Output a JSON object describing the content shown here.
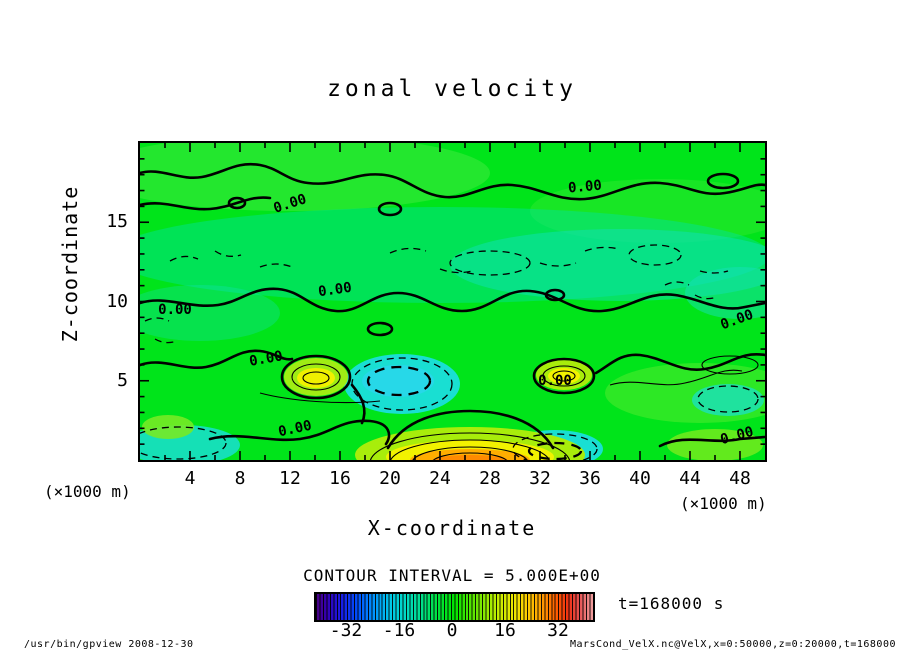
{
  "chart_data": {
    "type": "heatmap",
    "subtype": "filled-contour",
    "title": "zonal velocity",
    "xlabel": "X-coordinate",
    "ylabel": "Z-coordinate",
    "x_unit": "(×1000 m)",
    "y_unit": "(×1000 m)",
    "xlim": [
      0,
      50
    ],
    "ylim": [
      0,
      20
    ],
    "x_ticks": [
      4,
      8,
      12,
      16,
      20,
      24,
      28,
      32,
      36,
      40,
      44,
      48
    ],
    "y_ticks": [
      5,
      10,
      15
    ],
    "grid": false,
    "contour_interval": 5.0,
    "contour_interval_label": "CONTOUR INTERVAL = 5.000E+00",
    "zero_contour_label": "0.00",
    "time_label": "t=168000 s",
    "colorbar": {
      "position": "bottom",
      "ticks": [
        "-32",
        "-16",
        "0",
        "16",
        "32"
      ],
      "range": [
        -40,
        40
      ],
      "palette": [
        "#4b0082",
        "#2020e6",
        "#0064ff",
        "#00b4f0",
        "#00dcc8",
        "#00e464",
        "#00e400",
        "#78ea00",
        "#d2ee00",
        "#f5dc00",
        "#ffaa00",
        "#ff6400",
        "#ef3c1e",
        "#f0a0a0"
      ]
    },
    "field_summary": {
      "background_value_range": [
        -5,
        5
      ],
      "features": [
        {
          "x": 26,
          "z": 0.5,
          "approx_value": 20,
          "note": "strong positive maximum at bottom boundary (orange core, nested solid contours)"
        },
        {
          "x": 14.5,
          "z": 5,
          "approx_value": 8,
          "note": "local positive cell (yellow patch ringed by solid contours)"
        },
        {
          "x": 34,
          "z": 5.5,
          "approx_value": 8,
          "note": "local positive cell (yellow patch ringed by solid contours)"
        },
        {
          "x": 21,
          "z": 4.5,
          "approx_value": -9,
          "note": "negative cell (cyan patch, bold dashed contours)"
        },
        {
          "x": 33,
          "z": 1,
          "approx_value": -7,
          "note": "negative cell at bottom boundary (cyan, dashed contours)"
        },
        {
          "x": 47,
          "z": 4.5,
          "approx_value": -6,
          "note": "negative cell on right side (cyan, dashed ring)"
        },
        {
          "x": 25,
          "z": 12,
          "approx_value": -3,
          "note": "weak negative band across mid-levels (scattered short dashes, teal tint)"
        },
        {
          "x": 25,
          "z": 17,
          "approx_value": 2,
          "note": "weak positive band near top bounded by labelled 0.00 contours"
        }
      ]
    }
  },
  "footer": {
    "left": "/usr/bin/gpview  2008-12-30",
    "right": "MarsCond_VelX.nc@VelX,x=0:50000,z=0:20000,t=168000"
  }
}
